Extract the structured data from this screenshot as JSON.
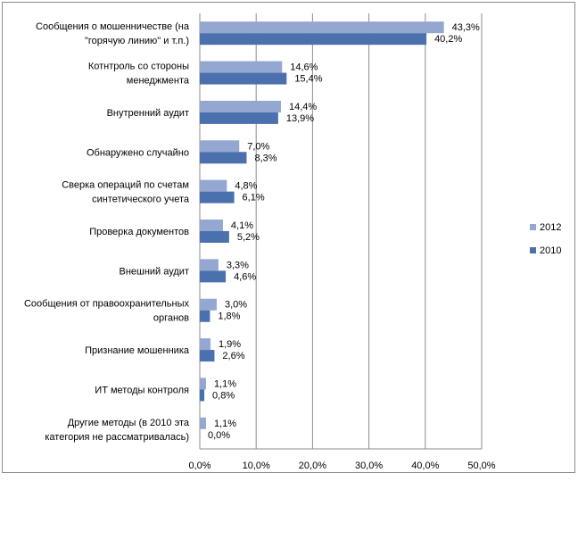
{
  "chart_data": {
    "type": "bar",
    "orientation": "horizontal",
    "title": "",
    "xlabel": "",
    "ylabel": "",
    "xlim": [
      0,
      50
    ],
    "x_ticks": [
      "0,0%",
      "10,0%",
      "20,0%",
      "30,0%",
      "40,0%",
      "50,0%"
    ],
    "grid": "vertical",
    "legend_position": "right",
    "categories": [
      [
        "Сообщения о мошенничестве (на",
        "\"горячую линию\"  и т.п.)"
      ],
      [
        "Котнтроль со стороны",
        "менеджмента"
      ],
      [
        "Внутренний аудит"
      ],
      [
        "Обнаружено случайно"
      ],
      [
        "Сверка операций по счетам",
        "синтетического учета"
      ],
      [
        "Проверка документов"
      ],
      [
        "Внешний аудит"
      ],
      [
        "Сообщения от правоохранительных",
        "органов"
      ],
      [
        "Признание мошенника"
      ],
      [
        "ИТ методы контроля"
      ],
      [
        "Другие методы (в 2010 эта",
        "категория не рассматривалась)"
      ]
    ],
    "series": [
      {
        "name": "2012",
        "color": "#94a7d1",
        "values": [
          43.3,
          14.6,
          14.4,
          7.0,
          4.8,
          4.1,
          3.3,
          3.0,
          1.9,
          1.1,
          1.1
        ],
        "labels": [
          "43,3%",
          "14,6%",
          "14,4%",
          "7,0%",
          "4,8%",
          "4,1%",
          "3,3%",
          "3,0%",
          "1,9%",
          "1,1%",
          "1,1%"
        ]
      },
      {
        "name": "2010",
        "color": "#4a70ae",
        "values": [
          40.2,
          15.4,
          13.9,
          8.3,
          6.1,
          5.2,
          4.6,
          1.8,
          2.6,
          0.8,
          0.0
        ],
        "labels": [
          "40,2%",
          "15,4%",
          "13,9%",
          "8,3%",
          "6,1%",
          "5,2%",
          "4,6%",
          "1,8%",
          "2,6%",
          "0,8%",
          "0,0%"
        ]
      }
    ]
  }
}
